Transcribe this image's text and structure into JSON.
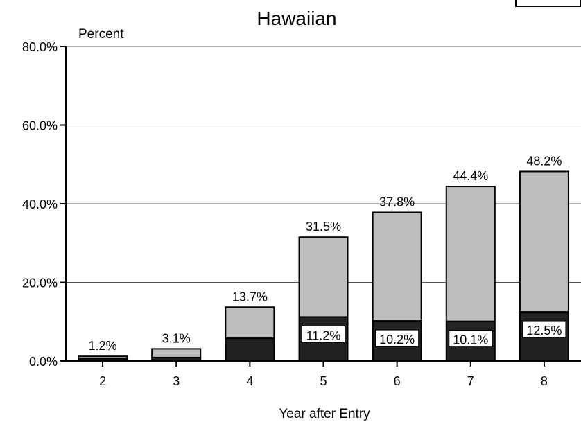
{
  "chart_data": {
    "type": "bar",
    "stacked": true,
    "title": "Hawaiian",
    "xlabel": "Year after Entry",
    "ylabel": "Percent",
    "ylim": [
      0,
      80
    ],
    "y_ticks": [
      "0.0%",
      "20.0%",
      "40.0%",
      "60.0%",
      "80.0%"
    ],
    "grid": "horizontal",
    "categories": [
      "2",
      "3",
      "4",
      "5",
      "6",
      "7",
      "8"
    ],
    "series": [
      {
        "values": [
          0.6,
          0.9,
          5.8,
          11.2,
          10.2,
          10.1,
          12.5
        ],
        "color": "#222222"
      },
      {
        "values": [
          0.6,
          2.2,
          7.9,
          20.3,
          27.6,
          34.3,
          35.7
        ],
        "color": "#bdbdbd"
      }
    ],
    "totals": [
      1.2,
      3.1,
      13.7,
      31.5,
      37.8,
      44.4,
      48.2
    ],
    "total_labels": [
      "1.2%",
      "3.1%",
      "13.7%",
      "31.5%",
      "37.8%",
      "44.4%",
      "48.2%"
    ],
    "inner_labels": [
      "",
      "",
      "",
      "11.2%",
      "10.2%",
      "10.1%",
      "12.5%"
    ]
  }
}
